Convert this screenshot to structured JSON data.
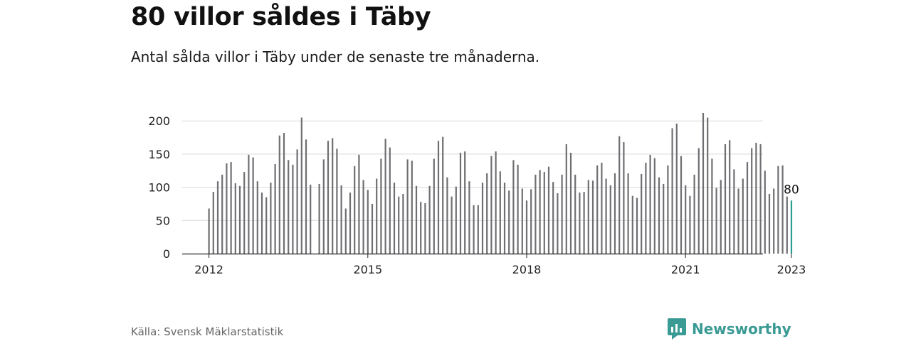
{
  "header": {
    "title": "80 villor såldes i Täby",
    "subtitle": "Antal sålda villor i Täby under de senaste tre månaderna."
  },
  "footer": {
    "source": "Källa: Svensk Mäklarstatistik",
    "brand": "Newsworthy"
  },
  "colors": {
    "bar": "#6f6f73",
    "highlight": "#2a9d8f",
    "grid": "#d9d9d9",
    "axis": "#222222",
    "brand": "#3a9a94"
  },
  "chart_data": {
    "type": "bar",
    "x_start": "2012-01",
    "y_ticks": [
      0,
      50,
      100,
      150,
      200
    ],
    "x_ticks": [
      "2012",
      "2015",
      "2018",
      "2021",
      "2023"
    ],
    "ylim": [
      0,
      215
    ],
    "grid": true,
    "highlight_last": true,
    "annotation": "80",
    "series": [
      {
        "values": [
          68,
          93,
          109,
          119,
          136,
          138,
          106,
          102,
          123,
          149,
          145,
          109,
          92,
          85,
          107,
          135,
          178,
          182,
          141,
          134,
          157,
          205,
          172,
          104,
          null,
          105,
          142,
          170,
          174,
          158,
          103,
          68,
          92,
          132,
          149,
          111,
          96,
          75,
          113,
          143,
          173,
          160,
          107,
          86,
          90,
          142,
          140,
          102,
          78,
          76,
          102,
          143,
          170,
          176,
          115,
          86,
          101,
          152,
          154,
          109,
          73,
          73,
          107,
          121,
          147,
          154,
          124,
          107,
          95,
          141,
          134,
          98,
          80,
          97,
          119,
          126,
          123,
          131,
          108,
          91,
          119,
          165,
          152,
          119,
          92,
          93,
          111,
          110,
          133,
          137,
          113,
          103,
          121,
          177,
          168,
          121,
          87,
          84,
          120,
          137,
          149,
          144,
          115,
          105,
          133,
          189,
          196,
          147,
          103,
          87,
          119,
          159,
          212,
          205,
          143,
          99,
          111,
          165,
          171,
          127,
          98,
          113,
          138,
          159,
          167,
          165,
          125,
          90,
          98,
          132,
          133,
          86,
          80
        ]
      }
    ]
  }
}
